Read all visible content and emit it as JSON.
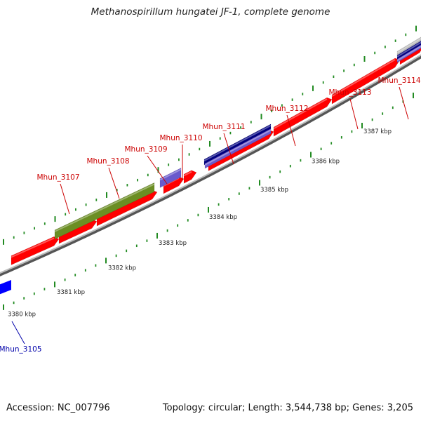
{
  "title": "Methanospirillum hungatei JF-1, complete genome",
  "footer": {
    "accession": "Accession: NC_007796",
    "topology": "Topology: circular; Length: 3,544,738 bp; Genes: 3,205"
  },
  "colors": {
    "cds_forward": "#ff0000",
    "cds_forward_light": "#ff8080",
    "gene_green": "#6b8e23",
    "gene_purple": "#6a5acd",
    "gene_navy": "#000080",
    "gene_blue": "#0000ff",
    "label_red": "#cc0000",
    "label_blue": "#0000aa",
    "tick_green": "#228b22",
    "backbone": "#888888"
  },
  "kbp_labels": [
    "3380 kbp",
    "3381 kbp",
    "3382 kbp",
    "3383 kbp",
    "3384 kbp",
    "3385 kbp",
    "3386 kbp",
    "3387 kbp"
  ],
  "gene_labels": [
    {
      "name": "Mhun_3105",
      "color": "blue"
    },
    {
      "name": "Mhun_3107",
      "color": "red"
    },
    {
      "name": "Mhun_3108",
      "color": "red"
    },
    {
      "name": "Mhun_3109",
      "color": "red"
    },
    {
      "name": "Mhun_3110",
      "color": "red"
    },
    {
      "name": "Mhun_3111",
      "color": "red"
    },
    {
      "name": "Mhun_3112",
      "color": "red"
    },
    {
      "name": "Mhun_3113",
      "color": "red"
    },
    {
      "name": "Mhun_3114",
      "color": "red"
    }
  ]
}
